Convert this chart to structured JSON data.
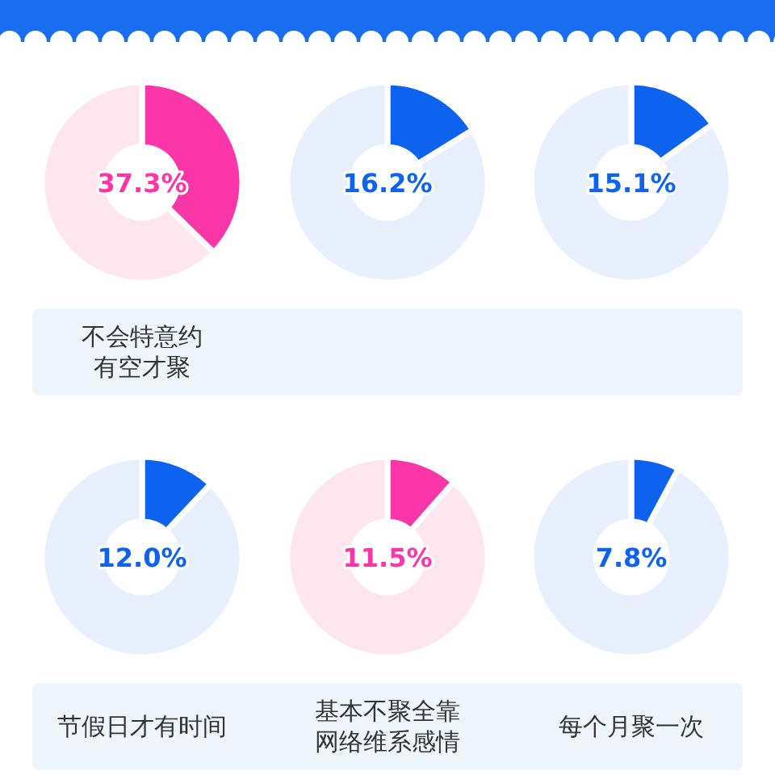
{
  "chart_data": [
    {
      "type": "donut",
      "title": "不会特意约有空才聚",
      "categories": [
        null,
        null
      ],
      "values": [
        37.3,
        62.7
      ],
      "colors": [
        "#fb36a9",
        "#fde6ee"
      ],
      "annotations": [
        "37.3%"
      ]
    },
    {
      "type": "donut",
      "categories": [
        null,
        null
      ],
      "values": [
        16.2,
        83.8
      ],
      "colors": [
        "#0d63ee",
        "#e7f0fc"
      ],
      "annotations": [
        "16.2%"
      ]
    },
    {
      "type": "donut",
      "categories": [
        null,
        null
      ],
      "values": [
        15.1,
        84.9
      ],
      "colors": [
        "#0d63ee",
        "#e7f0fc"
      ],
      "annotations": [
        "15.1%"
      ]
    },
    {
      "type": "donut",
      "title": "节假日才有时间",
      "categories": [
        null,
        null
      ],
      "values": [
        12.0,
        88.0
      ],
      "colors": [
        "#0d63ee",
        "#e7f0fc"
      ],
      "annotations": [
        "12.0%"
      ]
    },
    {
      "type": "donut",
      "title": "基本不聚全靠网络维系感情",
      "categories": [
        null,
        null
      ],
      "values": [
        11.5,
        88.5
      ],
      "colors": [
        "#fb36a9",
        "#fde6ee"
      ],
      "annotations": [
        "11.5%"
      ]
    },
    {
      "type": "donut",
      "title": "每个月聚一次",
      "categories": [
        null,
        null
      ],
      "values": [
        7.8,
        92.2
      ],
      "colors": [
        "#0d63ee",
        "#e7f0fc"
      ],
      "annotations": [
        "7.8%"
      ]
    }
  ]
}
